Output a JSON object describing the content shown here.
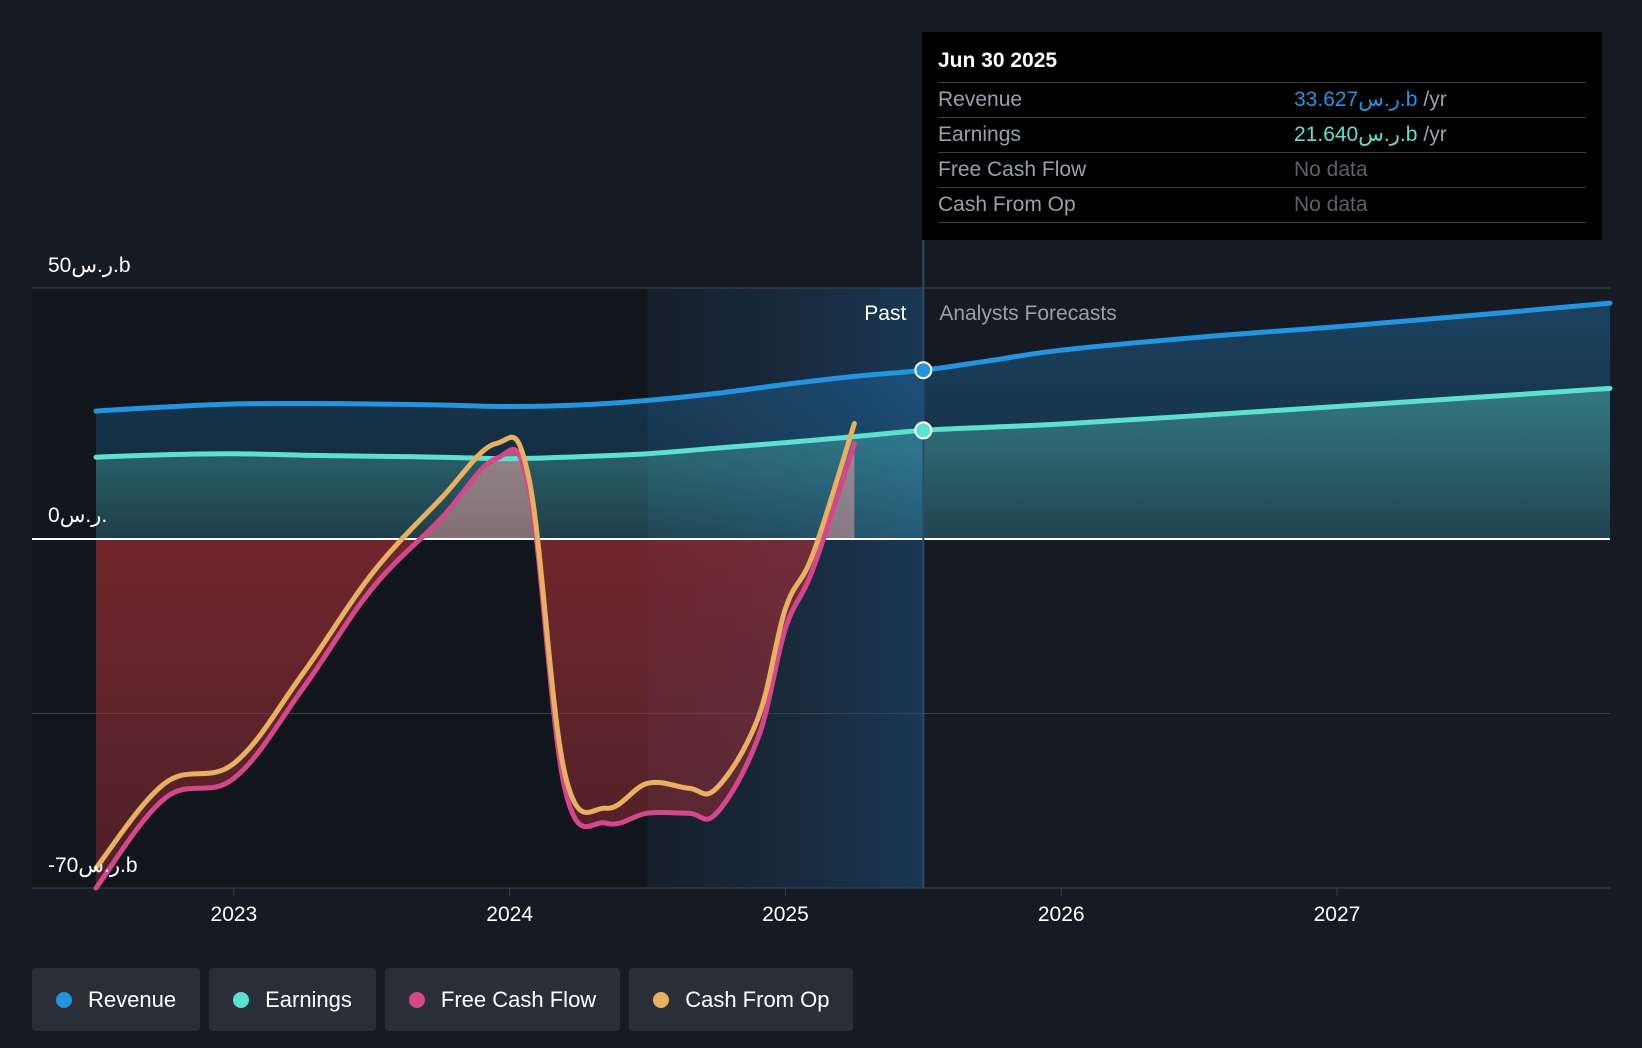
{
  "colors": {
    "revenue": "#2394df",
    "earnings": "#5de0d0",
    "free_cash_flow": "#d4478a",
    "cash_from_op": "#e8b061",
    "background": "#151b24"
  },
  "tooltip": {
    "date": "Jun 30 2025",
    "rows": [
      {
        "name": "Revenue",
        "value": "33.627ر.س.b",
        "unit": "/yr",
        "color": "#2394df"
      },
      {
        "name": "Earnings",
        "value": "21.640ر.س.b",
        "unit": "/yr",
        "color": "#5de0d0"
      },
      {
        "name": "Free Cash Flow",
        "value": "No data",
        "unit": "",
        "color": "#5c6067"
      },
      {
        "name": "Cash From Op",
        "value": "No data",
        "unit": "",
        "color": "#5c6067"
      }
    ]
  },
  "legend": [
    {
      "label": "Revenue",
      "color": "#2394df"
    },
    {
      "label": "Earnings",
      "color": "#5de0d0"
    },
    {
      "label": "Free Cash Flow",
      "color": "#d4478a"
    },
    {
      "label": "Cash From Op",
      "color": "#e8b061"
    }
  ],
  "chart_data": {
    "type": "line",
    "y_tick_labels": [
      "50ر.س.b",
      "0ر.س.",
      "-70ر.س.b"
    ],
    "ylim": [
      -70,
      50
    ],
    "x_tick_labels": [
      "2023",
      "2024",
      "2025",
      "2026",
      "2027"
    ],
    "x_ticks": [
      2023.0,
      2024.0,
      2025.0,
      2026.0,
      2027.0
    ],
    "xlim": [
      2022.5,
      2027.99
    ],
    "past_label": "Past",
    "forecast_label": "Analysts Forecasts",
    "past_end": 2025.5,
    "shade_start": 2024.5,
    "series": [
      {
        "name": "Revenue",
        "key": "revenue",
        "color": "#2394df",
        "x": [
          2022.5,
          2022.75,
          2023.0,
          2023.25,
          2023.5,
          2023.75,
          2024.0,
          2024.25,
          2024.5,
          2024.75,
          2025.0,
          2025.25,
          2025.5,
          2025.75,
          2026.0,
          2026.5,
          2027.0,
          2027.5,
          2027.99
        ],
        "values": [
          25.5,
          26.3,
          26.9,
          27.0,
          26.9,
          26.7,
          26.4,
          26.7,
          27.6,
          29.0,
          30.8,
          32.4,
          33.627,
          35.6,
          37.6,
          40.2,
          42.3,
          44.6,
          47.0
        ]
      },
      {
        "name": "Earnings",
        "key": "earnings",
        "color": "#5de0d0",
        "x": [
          2022.5,
          2022.75,
          2023.0,
          2023.25,
          2023.5,
          2023.75,
          2024.0,
          2024.25,
          2024.5,
          2024.75,
          2025.0,
          2025.25,
          2025.5,
          2025.75,
          2026.0,
          2026.5,
          2027.0,
          2027.5,
          2027.99
        ],
        "values": [
          16.3,
          16.8,
          17.0,
          16.7,
          16.5,
          16.3,
          16.0,
          16.4,
          17.0,
          18.1,
          19.2,
          20.4,
          21.64,
          22.3,
          22.9,
          24.6,
          26.4,
          28.2,
          30.0
        ]
      },
      {
        "name": "Free Cash Flow",
        "key": "free_cash_flow",
        "color": "#d4478a",
        "x": [
          2022.5,
          2022.75,
          2023.0,
          2023.25,
          2023.5,
          2023.75,
          2023.95,
          2024.07,
          2024.2,
          2024.35,
          2024.5,
          2024.65,
          2024.75,
          2024.9,
          2025.0,
          2025.1,
          2025.25
        ],
        "values": [
          -70,
          -52,
          -48,
          -30,
          -10,
          4,
          16,
          10,
          -50,
          -57,
          -55,
          -55,
          -55,
          -40,
          -18,
          -6,
          19
        ]
      },
      {
        "name": "Cash From Op",
        "key": "cash_from_op",
        "color": "#e8b061",
        "x": [
          2022.5,
          2022.75,
          2023.0,
          2023.25,
          2023.5,
          2023.75,
          2023.95,
          2024.07,
          2024.2,
          2024.35,
          2024.5,
          2024.65,
          2024.75,
          2024.9,
          2025.0,
          2025.1,
          2025.25
        ],
        "values": [
          -66,
          -49,
          -45,
          -27,
          -7,
          8,
          19,
          12,
          -47,
          -54,
          -49,
          -50,
          -50,
          -36,
          -14,
          -3,
          23
        ]
      }
    ]
  }
}
